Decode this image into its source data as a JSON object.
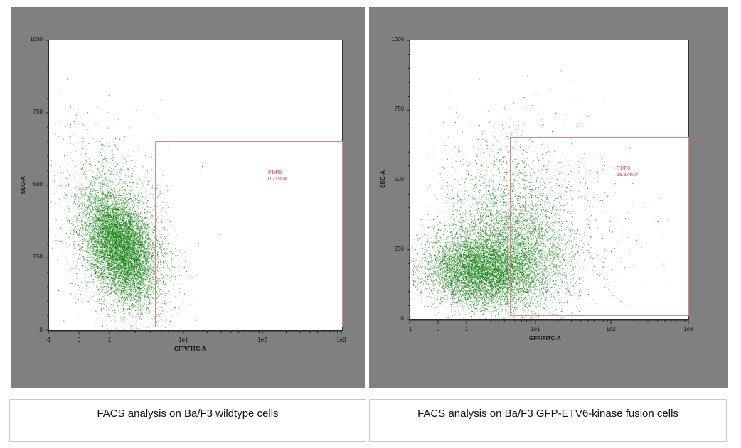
{
  "chart_data": [
    {
      "type": "scatter",
      "title": "FACS analysis on Ba/F3 wildtype cells",
      "xlabel": "GFP/FITC-A",
      "ylabel": "SSC-A",
      "xscale": "biexponential/log",
      "x_ticks": [
        "-1",
        "0",
        "1",
        "1e1",
        "1e2",
        "1e3"
      ],
      "y_ticks": [
        "0",
        "250",
        "500",
        "750",
        "1000"
      ],
      "ylim": [
        0,
        1000
      ],
      "gate": {
        "name": "P1\\P8",
        "percent": "0.21%",
        "label_line1": "P1\\P8",
        "label_line2": "0.21%-#",
        "x_from": "~4.5",
        "x_to": "1e3",
        "y_from": 10,
        "y_to": 650
      },
      "population": {
        "center_x": "~1",
        "center_y": 280,
        "spread_y": [
          100,
          560
        ],
        "color": "#108010",
        "note": "single GFP-negative cloud left of gate"
      }
    },
    {
      "type": "scatter",
      "title": "FACS analysis on Ba/F3 GFP-ETV6-kinase fusion cells",
      "xlabel": "GFP/FITC-A",
      "ylabel": "SSC-A",
      "xscale": "biexponential/log",
      "x_ticks": [
        "-1",
        "0",
        "1",
        "1e1",
        "1e2",
        "1e3"
      ],
      "y_ticks": [
        "0",
        "250",
        "500",
        "750",
        "1000"
      ],
      "ylim": [
        0,
        1000
      ],
      "gate": {
        "name": "P1\\P8",
        "percent": "18.37%",
        "label_line1": "P1\\P8",
        "label_line2": "18.37%-#",
        "x_from": "~4.5",
        "x_to": "1e3",
        "y_from": 10,
        "y_to": 650
      },
      "population": {
        "center_x": "~2",
        "center_y": 180,
        "spread_y": [
          80,
          560
        ],
        "color": "#108010",
        "note": "broad cloud extending into GFP+ gate"
      }
    }
  ],
  "panels": {
    "left": {
      "ylabel": "SSC-A",
      "xlabel": "GFP/FITC-A",
      "y_ticks": [
        "1000",
        "750",
        "500",
        "250",
        "0"
      ],
      "x_ticks": [
        "-1",
        "0",
        "1",
        "1e1",
        "1e2",
        "1e3"
      ],
      "gate_line1": "P1\\P8",
      "gate_line2": "0.21%-#",
      "caption": "FACS analysis on Ba/F3 wildtype cells"
    },
    "right": {
      "ylabel": "SSC-A",
      "xlabel": "GFP/FITC-A",
      "y_ticks": [
        "1000",
        "750",
        "500",
        "250",
        "0"
      ],
      "x_ticks": [
        "-1",
        "0",
        "1",
        "1e1",
        "1e2",
        "1e3"
      ],
      "gate_line1": "P1\\P8",
      "gate_line2": "18.37%-#",
      "caption": "FACS analysis on Ba/F3 GFP-ETV6-kinase fusion cells"
    }
  },
  "colors": {
    "panel_bg": "#808080",
    "dots": "#108010",
    "gate": "#d9868c",
    "gate_text": "#e04050"
  }
}
